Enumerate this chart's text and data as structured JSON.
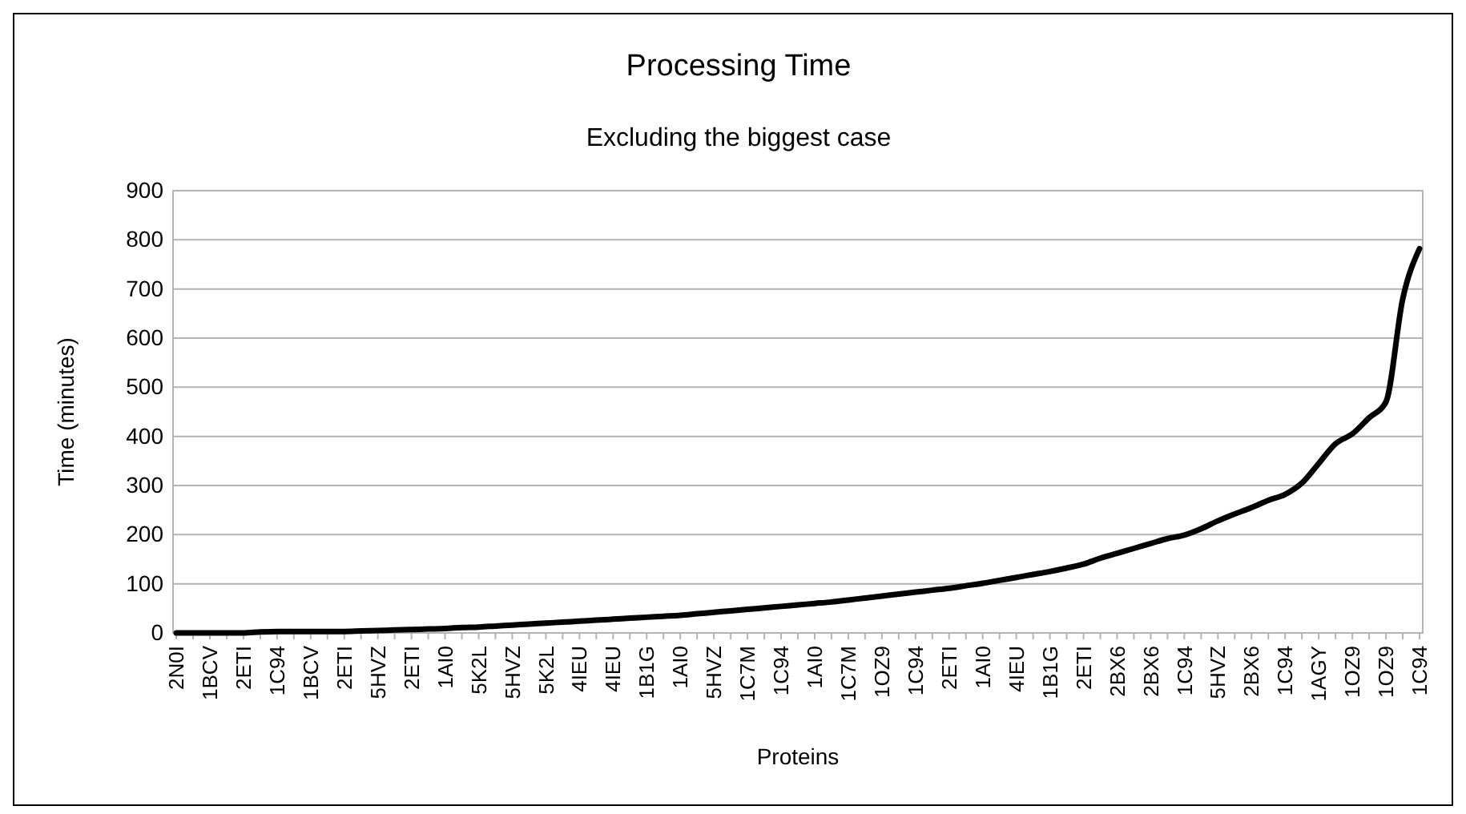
{
  "chart_data": {
    "type": "line",
    "title": "Processing Time",
    "subtitle": "Excluding the biggest case",
    "xlabel": "Proteins",
    "ylabel": "Time (minutes)",
    "categories": [
      "2N0I",
      null,
      "1BCV",
      null,
      "2ETI",
      null,
      "1C94",
      null,
      "1BCV",
      null,
      "2ETI",
      null,
      "5HVZ",
      null,
      "2ETI",
      null,
      "1AI0",
      null,
      "5K2L",
      null,
      "5HVZ",
      null,
      "5K2L",
      null,
      "4IEU",
      null,
      "4IEU",
      null,
      "1B1G",
      null,
      "1AI0",
      null,
      "5HVZ",
      null,
      "1C7M",
      null,
      "1C94",
      null,
      "1AI0",
      null,
      "1C7M",
      null,
      "1OZ9",
      null,
      "1C94",
      null,
      "2ETI",
      null,
      "1AI0",
      null,
      "4IEU",
      null,
      "1B1G",
      null,
      "2ETI",
      null,
      "2BX6",
      null,
      "2BX6",
      null,
      "1C94",
      null,
      "5HVZ",
      null,
      "2BX6",
      null,
      "1C94",
      null,
      "1AGY",
      null,
      "1OZ9",
      null,
      "1OZ9",
      null,
      "1C94"
    ],
    "series": [
      {
        "color": "#000000",
        "values": [
          0,
          0,
          0,
          0,
          0,
          2,
          3,
          3,
          3,
          3,
          3,
          4,
          5,
          6,
          7,
          8,
          9,
          11,
          12,
          14,
          16,
          18,
          20,
          22,
          24,
          26,
          28,
          30,
          32,
          34,
          36,
          39,
          42,
          45,
          48,
          51,
          54,
          57,
          60,
          63,
          67,
          71,
          75,
          79,
          83,
          87,
          91,
          96,
          101,
          107,
          113,
          119,
          125,
          132,
          140,
          152,
          162,
          172,
          182,
          192,
          199,
          212,
          228,
          242,
          255,
          270,
          282,
          305,
          345,
          385,
          405,
          438,
          470,
          680,
          782
        ]
      }
    ],
    "ylim": [
      0,
      900
    ],
    "yticks": [
      0,
      100,
      200,
      300,
      400,
      500,
      600,
      700,
      800,
      900
    ],
    "grid": "y",
    "marker": "none",
    "line_style": "solid"
  }
}
